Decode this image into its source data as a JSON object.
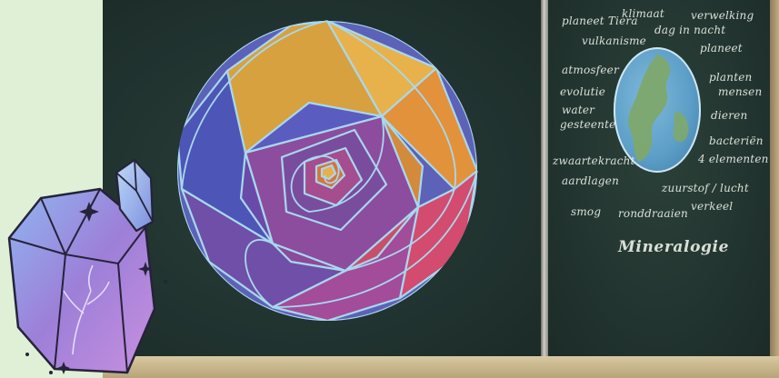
{
  "board_right": {
    "words": {
      "planeet_tiera": "planeet Tiera",
      "klimaat": "klimaat",
      "verwelking": "verwelking",
      "dag_in_nacht": "dag in nacht",
      "vulkanisme": "vulkanisme",
      "planeet": "planeet",
      "atmosfeer": "atmosfeer",
      "planten": "planten",
      "mensen": "mensen",
      "evolutie": "evolutie",
      "water": "water",
      "dieren": "dieren",
      "gesteente": "gesteente",
      "bacterien": "bacteriën",
      "zwaartekracht": "zwaartekracht",
      "vier_elementen": "4 elementen",
      "aardlagen": "aardlagen",
      "zuurstof_lucht": "zuurstof / lucht",
      "smog": "smog",
      "ronddraaien": "ronddraaien",
      "verkeel": "verkeel",
      "title": "Mineralogie"
    }
  },
  "colors": {
    "board": "#223530",
    "tray": "#cbb98f",
    "background": "#dff0d6",
    "chalk": "#e9eee6"
  }
}
